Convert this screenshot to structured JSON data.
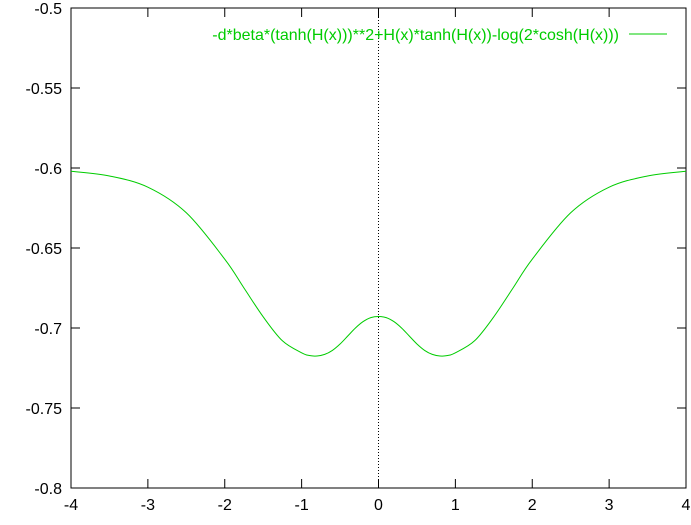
{
  "chart_data": {
    "type": "line",
    "title": "",
    "xlabel": "",
    "ylabel": "",
    "xlim": [
      -4,
      4
    ],
    "ylim": [
      -0.8,
      -0.5
    ],
    "x_ticks": [
      -4,
      -3,
      -2,
      -1,
      0,
      1,
      2,
      3,
      4
    ],
    "x_tick_labels": [
      "-4",
      "-3",
      "-2",
      "-1",
      "0",
      "1",
      "2",
      "3",
      "4"
    ],
    "y_ticks": [
      -0.8,
      -0.75,
      -0.7,
      -0.65,
      -0.6,
      -0.55,
      -0.5
    ],
    "y_tick_labels": [
      "-0.8",
      "-0.75",
      "-0.7",
      "-0.65",
      "-0.6",
      "-0.55",
      "-0.5"
    ],
    "grid": false,
    "zero_axis": "x=0 dotted vertical line",
    "legend_position": "top-right",
    "series": [
      {
        "name": "-d*beta*(tanh(H(x)))**2+H(x)*tanh(H(x))-log(2*cosh(H(x)))",
        "color": "#00cc00",
        "x": [
          -4.0,
          -3.5,
          -3.0,
          -2.5,
          -2.0,
          -1.75,
          -1.5,
          -1.25,
          -1.0,
          -0.9,
          -0.8,
          -0.7,
          -0.6,
          -0.5,
          -0.4,
          -0.3,
          -0.2,
          -0.1,
          0.0,
          0.1,
          0.2,
          0.3,
          0.4,
          0.5,
          0.6,
          0.7,
          0.8,
          0.9,
          1.0,
          1.25,
          1.5,
          1.75,
          2.0,
          2.5,
          3.0,
          3.5,
          4.0
        ],
        "y": [
          -0.602,
          -0.605,
          -0.612,
          -0.628,
          -0.657,
          -0.675,
          -0.693,
          -0.708,
          -0.7155,
          -0.7172,
          -0.7175,
          -0.7165,
          -0.714,
          -0.71,
          -0.705,
          -0.7,
          -0.696,
          -0.6935,
          -0.6928,
          -0.6935,
          -0.696,
          -0.7,
          -0.705,
          -0.71,
          -0.714,
          -0.7165,
          -0.7175,
          -0.7172,
          -0.7155,
          -0.708,
          -0.693,
          -0.675,
          -0.657,
          -0.628,
          -0.612,
          -0.605,
          -0.602
        ]
      }
    ]
  }
}
